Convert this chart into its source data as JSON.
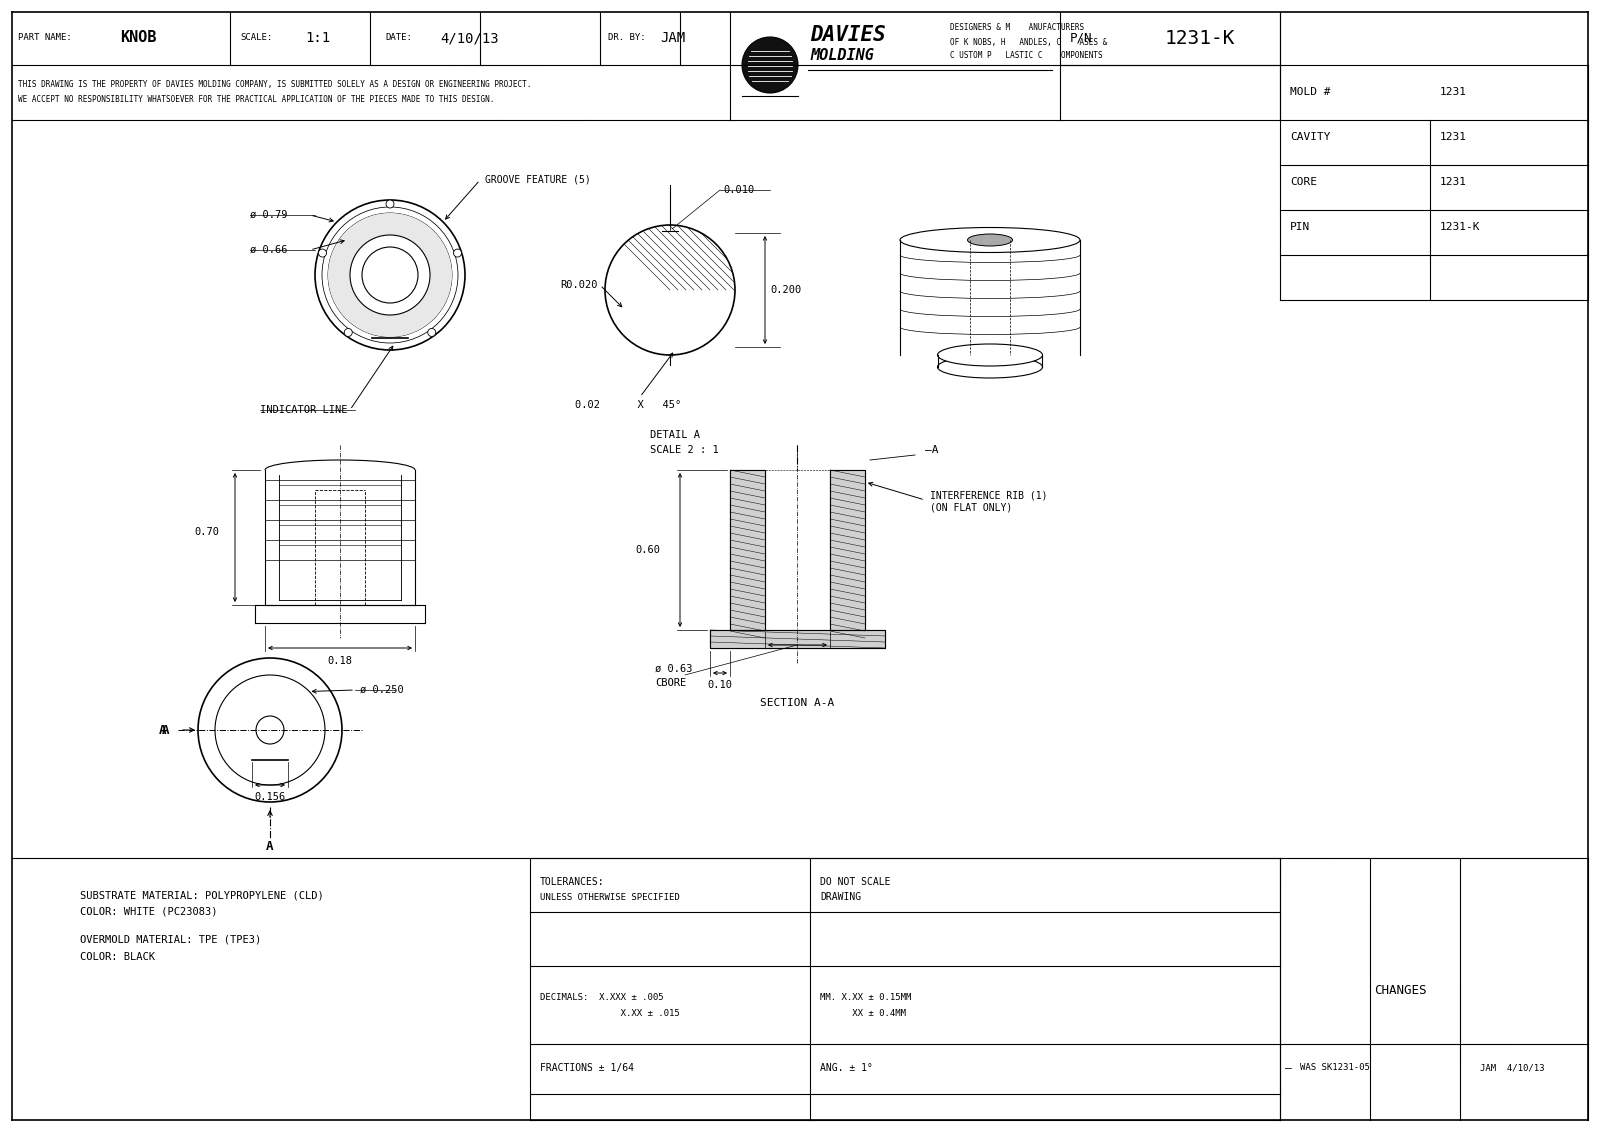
{
  "bg_color": "#ffffff",
  "line_color": "#000000",
  "part_name": "KNOB",
  "scale": "1:1",
  "date": "4/10/13",
  "dr_by": "JAM",
  "pn": "1231-K",
  "mold": "1231",
  "cavity": "1231",
  "core": "1231",
  "pin": "1231-K",
  "notice1": "THIS DRAWING IS THE PROPERTY OF DAVIES MOLDING COMPANY, IS SUBMITTED SOLELY AS A DESIGN OR ENGINEERING PROJECT.",
  "notice2": "WE ACCEPT NO RESPONSIBILITY WHATSOEVER FOR THE PRACTICAL APPLICATION OF THE PIECES MADE TO THIS DESIGN.",
  "substrate_line1": "SUBSTRATE MATERIAL: POLYPROPYLENE (CLD)",
  "substrate_line2": "COLOR: WHITE (PC23083)",
  "overmold_line1": "OVERMOLD MATERIAL: TPE (TPE3)",
  "overmold_line2": "COLOR: BLACK",
  "tol_head1": "TOLERANCES:",
  "tol_head2": "UNLESS OTHERWISE SPECIFIED",
  "tol_dec1": "DECIMALS:  X.XXX ± .005",
  "tol_dec2": "               X.XX ± .015",
  "tol_mm1": "MM. X.XX ± 0.15MM",
  "tol_mm2": "      XX ± 0.4MM",
  "tol_frac": "FRACTIONS ± 1/64",
  "tol_ang": "ANG. ± 1°",
  "do_not_scale1": "DO NOT SCALE",
  "do_not_scale2": "DRAWING",
  "changes": "CHANGES",
  "was": "WAS SK1231-05",
  "jam_date": "JAM  4/10/13",
  "detail_a_line1": "DETAIL A",
  "detail_a_line2": "SCALE 2 : 1",
  "section_aa": "SECTION A-A",
  "dim_079": "ø 0.79",
  "dim_066": "ø 0.66",
  "dim_070": "0.70",
  "dim_018": "0.18",
  "dim_0250": "ø 0.250",
  "dim_0156": "0.156",
  "dim_010": "0.010",
  "dim_r020": "R0.020",
  "dim_0200": "0.200",
  "dim_chamfer": "0.02      X   45°",
  "dim_060": "0.60",
  "dim_010b": "0.10",
  "dim_063cbore": "ø 0.63",
  "dim_cbore": "CBORE",
  "groove": "GROOVE FEATURE (5)",
  "indicator": "INDICATOR LINE",
  "interference1": "INTERFERENCE RIB (1)",
  "interference2": "(ON FLAT ONLY)"
}
